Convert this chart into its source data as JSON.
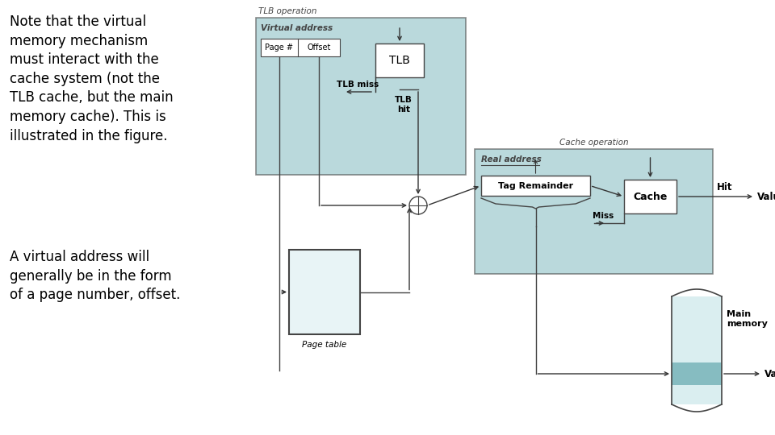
{
  "text_left_1": "Note that the virtual\nmemory mechanism\nmust interact with the\ncache system (not the\nTLB cache, but the main\nmemory cache). This is\nillustrated in the figure.",
  "text_left_2": "A virtual address will\ngenerally be in the form\nof a page number, offset.",
  "bg_color": "#ffffff",
  "tlb_box_color": "#8dc0c5",
  "cache_box_color": "#8dc0c5",
  "box_edge_color": "#444444",
  "label_color": "#444444",
  "arrow_color": "#333333",
  "tlb_op_label": "TLB operation",
  "cache_op_label": "Cache operation",
  "virtual_addr_label": "Virtual address",
  "real_addr_label": "Real address",
  "page_label": "Page #",
  "offset_label": "Offset",
  "tlb_label": "TLB",
  "tlb_miss_label": "TLB miss",
  "tlb_hit_label": "TLB\nhit",
  "tag_remainder_label": "Tag Remainder",
  "cache_label": "Cache",
  "hit_label": "Hit",
  "miss_label": "Miss",
  "value_label_1": "Value",
  "value_label_2": "Value",
  "main_memory_label": "Main\nmemory",
  "page_table_label": "Page table"
}
